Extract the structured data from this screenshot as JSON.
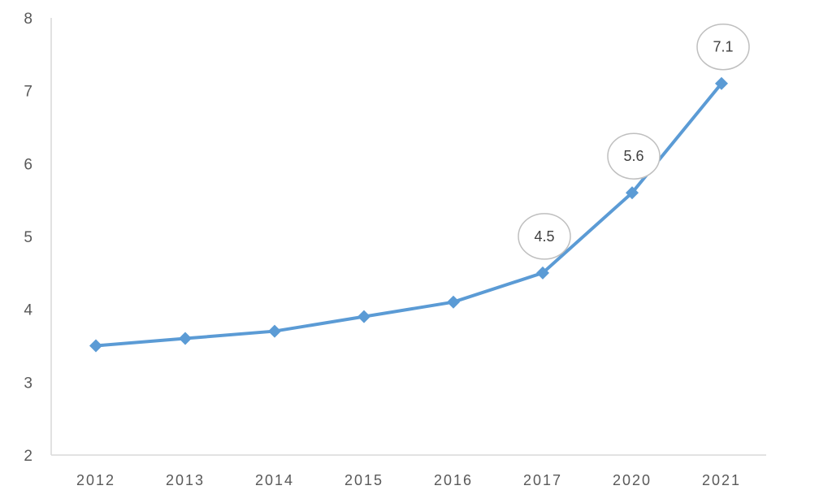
{
  "chart_data": {
    "type": "line",
    "title": "",
    "xlabel": "",
    "ylabel": "",
    "ylim": [
      2,
      8
    ],
    "yticks": [
      2,
      3,
      4,
      5,
      6,
      7,
      8
    ],
    "categories": [
      "2012",
      "2013",
      "2014",
      "2015",
      "2016",
      "2017",
      "2020",
      "2021"
    ],
    "series": [
      {
        "values": [
          3.5,
          3.6,
          3.7,
          3.9,
          4.1,
          4.5,
          5.6,
          7.1
        ],
        "color": "#5b9bd5",
        "marker": "diamond"
      }
    ],
    "data_labels": [
      {
        "index": 5,
        "text": "4.5"
      },
      {
        "index": 6,
        "text": "5.6"
      },
      {
        "index": 7,
        "text": "7.1"
      }
    ],
    "grid": false,
    "axis_color": "#d9d9d9",
    "label_bubble_color": "#bfbfbf"
  }
}
